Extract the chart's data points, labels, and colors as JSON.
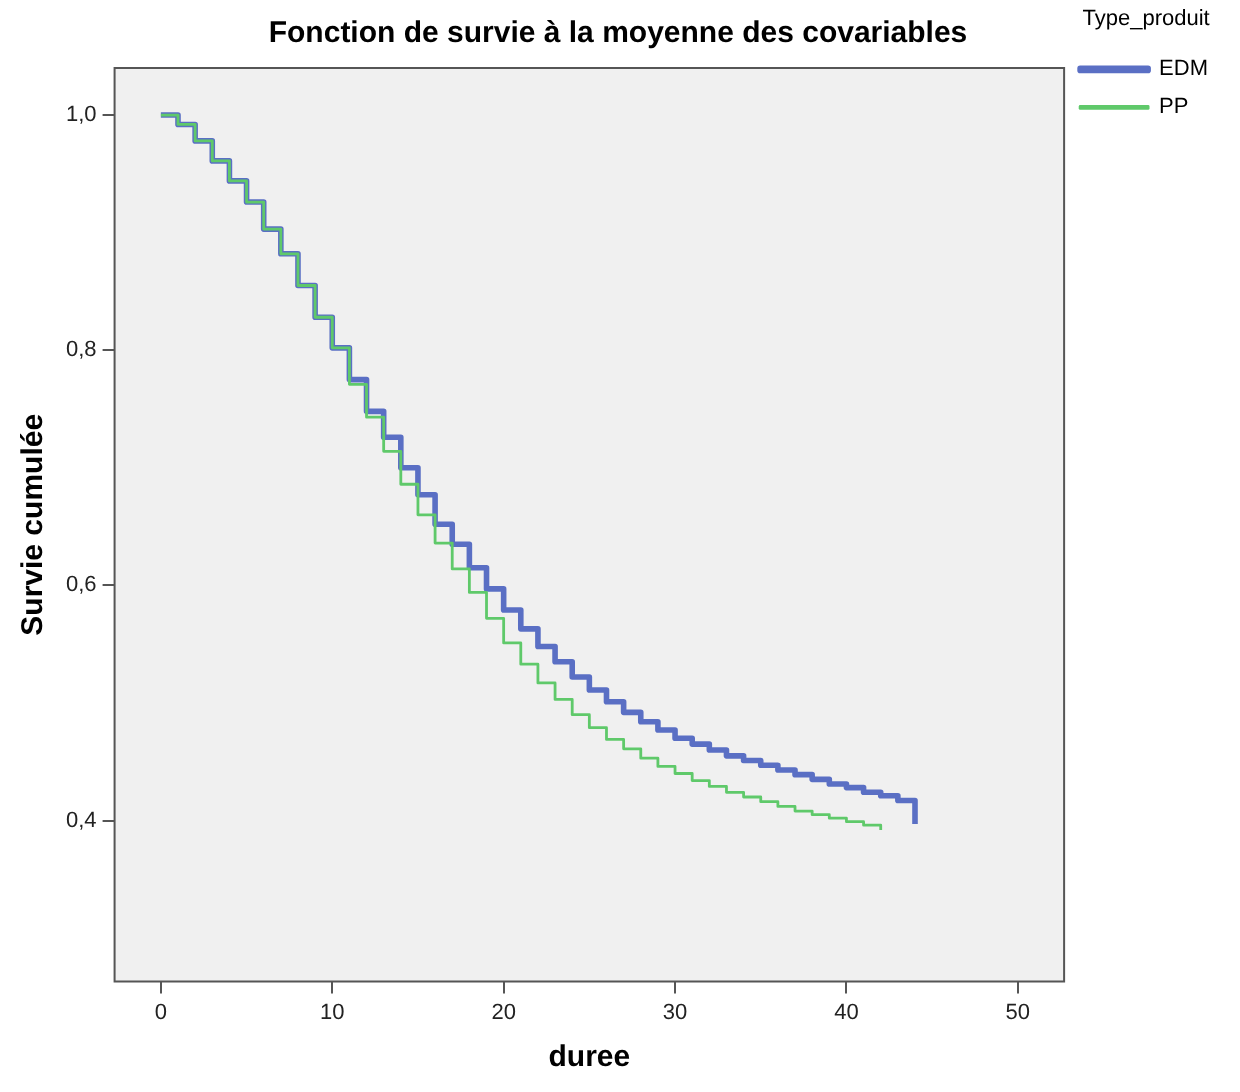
{
  "chart_data": {
    "type": "step",
    "title": "Fonction de survie à la moyenne des covariables",
    "xlabel": "duree",
    "ylabel": "Survie cumulée",
    "legend_title": "Type_produit",
    "legend": "top right",
    "grid": false,
    "xlim": [
      -2.7,
      52.7
    ],
    "ylim": [
      0.263,
      1.04
    ],
    "xticks": [
      0,
      10,
      20,
      30,
      40,
      50
    ],
    "yticks": [
      {
        "value": 0.4,
        "label": "0,4"
      },
      {
        "value": 0.6,
        "label": "0,6"
      },
      {
        "value": 0.8,
        "label": "0,8"
      },
      {
        "value": 1.0,
        "label": "1,0"
      }
    ],
    "series": [
      {
        "name": "EDM",
        "color": "#5a6fc4",
        "x": [
          0,
          1,
          2,
          3,
          4,
          5,
          6,
          7,
          8,
          9,
          10,
          11,
          12,
          13,
          14,
          15,
          16,
          17,
          18,
          19,
          20,
          21,
          22,
          23,
          24,
          25,
          26,
          27,
          28,
          29,
          30,
          31,
          32,
          33,
          34,
          35,
          36,
          37,
          38,
          39,
          40,
          41,
          42,
          43,
          44
        ],
        "values": [
          1.0,
          0.992,
          0.978,
          0.961,
          0.944,
          0.926,
          0.903,
          0.882,
          0.855,
          0.828,
          0.802,
          0.775,
          0.748,
          0.726,
          0.7,
          0.677,
          0.652,
          0.635,
          0.615,
          0.597,
          0.579,
          0.563,
          0.548,
          0.535,
          0.522,
          0.511,
          0.501,
          0.492,
          0.484,
          0.477,
          0.47,
          0.465,
          0.46,
          0.455,
          0.451,
          0.447,
          0.443,
          0.439,
          0.435,
          0.431,
          0.428,
          0.424,
          0.421,
          0.417,
          0.397
        ]
      },
      {
        "name": "PP",
        "color": "#5fc96a",
        "x": [
          0,
          1,
          2,
          3,
          4,
          5,
          6,
          7,
          8,
          9,
          10,
          11,
          12,
          13,
          14,
          15,
          16,
          17,
          18,
          19,
          20,
          21,
          22,
          23,
          24,
          25,
          26,
          27,
          28,
          29,
          30,
          31,
          32,
          33,
          34,
          35,
          36,
          37,
          38,
          39,
          40,
          41,
          42
        ],
        "values": [
          1.0,
          0.992,
          0.978,
          0.961,
          0.944,
          0.926,
          0.903,
          0.882,
          0.855,
          0.828,
          0.802,
          0.771,
          0.743,
          0.714,
          0.686,
          0.66,
          0.636,
          0.614,
          0.594,
          0.572,
          0.551,
          0.533,
          0.517,
          0.503,
          0.49,
          0.479,
          0.469,
          0.461,
          0.453,
          0.446,
          0.44,
          0.434,
          0.429,
          0.424,
          0.42,
          0.416,
          0.412,
          0.408,
          0.405,
          0.402,
          0.399,
          0.396,
          0.392
        ]
      }
    ]
  }
}
